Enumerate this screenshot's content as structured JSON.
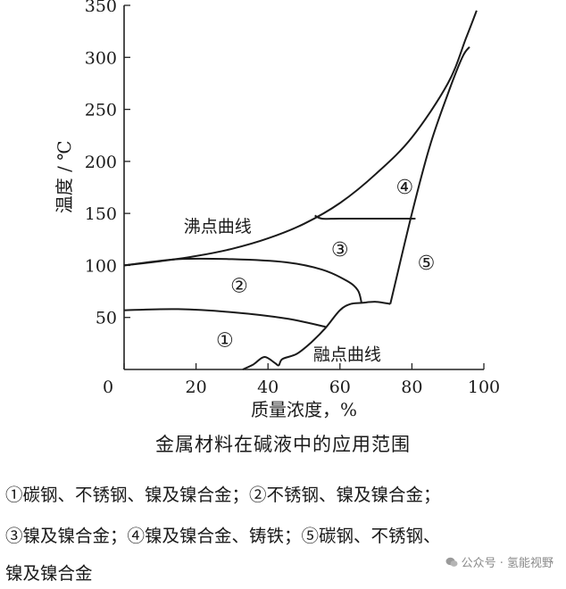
{
  "chart_data": {
    "type": "area",
    "title": "金属材料在碱液中的应用范围",
    "xlabel": "质量浓度，%",
    "ylabel": "温度 / ℃",
    "xlim": [
      0,
      100
    ],
    "ylim": [
      0,
      350
    ],
    "xticks": [
      "0",
      "20",
      "40",
      "60",
      "80",
      "100"
    ],
    "yticks": [
      "50",
      "100",
      "150",
      "200",
      "250",
      "300",
      "350"
    ],
    "grid": false,
    "curves": [
      {
        "name": "沸点曲线",
        "points": [
          [
            0,
            100
          ],
          [
            10,
            104
          ],
          [
            20,
            109
          ],
          [
            30,
            116
          ],
          [
            40,
            126
          ],
          [
            50,
            140
          ],
          [
            60,
            160
          ],
          [
            70,
            188
          ],
          [
            80,
            223
          ],
          [
            90,
            275
          ],
          [
            95,
            318
          ],
          [
            98,
            345
          ]
        ]
      },
      {
        "name": "融点曲线",
        "points": [
          [
            33,
            0
          ],
          [
            36,
            5
          ],
          [
            39,
            12
          ],
          [
            42,
            6
          ],
          [
            43,
            4
          ],
          [
            44,
            10
          ],
          [
            48,
            15
          ],
          [
            52,
            26
          ],
          [
            56,
            40
          ],
          [
            60,
            57
          ],
          [
            63,
            63
          ],
          [
            66,
            64
          ],
          [
            70,
            65
          ],
          [
            74,
            63
          ]
        ]
      },
      {
        "name": "",
        "points": [
          [
            74,
            63
          ],
          [
            80,
            150
          ],
          [
            85,
            215
          ],
          [
            90,
            265
          ],
          [
            94,
            300
          ],
          [
            96,
            310
          ]
        ]
      },
      {
        "name": "",
        "points": [
          [
            0,
            57
          ],
          [
            15,
            58
          ],
          [
            30,
            55
          ],
          [
            45,
            49
          ],
          [
            56,
            41
          ]
        ]
      },
      {
        "name": "",
        "points": [
          [
            0,
            100
          ],
          [
            15,
            106
          ],
          [
            30,
            106
          ],
          [
            45,
            103
          ],
          [
            55,
            96
          ],
          [
            62,
            85
          ],
          [
            65,
            76
          ],
          [
            66,
            64
          ]
        ]
      },
      {
        "name": "",
        "points": [
          [
            53,
            148
          ],
          [
            55,
            145
          ],
          [
            60,
            145
          ],
          [
            70,
            145
          ],
          [
            81,
            145
          ]
        ]
      }
    ],
    "region_labels": [
      {
        "label": "①",
        "x": 28,
        "y": 28
      },
      {
        "label": "②",
        "x": 32,
        "y": 80
      },
      {
        "label": "③",
        "x": 60,
        "y": 115
      },
      {
        "label": "④",
        "x": 78,
        "y": 175
      },
      {
        "label": "⑤",
        "x": 84,
        "y": 102
      }
    ],
    "annotations": [
      {
        "text": "沸点曲线",
        "x": 26,
        "y": 138
      },
      {
        "text": "融点曲线",
        "x": 62,
        "y": 15
      }
    ]
  },
  "caption": "金属材料在碱液中的应用范围",
  "legend": [
    "①碳钢、不锈钢、镍及镍合金；②不锈钢、镍及镍合金；",
    "③镍及镍合金；④镍及镍合金、铸铁；⑤碳钢、不锈钢、",
    "镍及镍合金"
  ],
  "watermark": "公众号 · 氢能视野"
}
